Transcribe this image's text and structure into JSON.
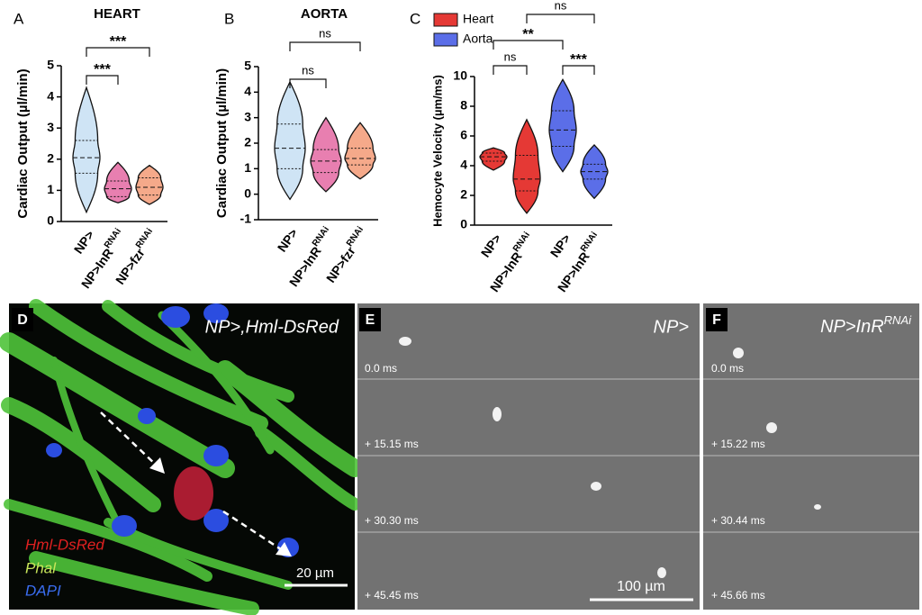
{
  "chart_data": [
    {
      "type": "violin",
      "label": "A",
      "title": "HEART",
      "ylabel": "Cardiac Output (µl/min)",
      "ylim": [
        0,
        5
      ],
      "yticks": [
        0,
        1,
        2,
        3,
        4,
        5
      ],
      "groups": [
        {
          "category": "NP>",
          "sup": null,
          "color": "#cfe4f5",
          "min": 0.3,
          "q1": 1.55,
          "median": 2.05,
          "q3": 2.6,
          "max": 4.3
        },
        {
          "category": "NP>InR",
          "sup": "RNAi",
          "color": "#e87fb0",
          "min": 0.6,
          "q1": 0.8,
          "median": 1.05,
          "q3": 1.3,
          "max": 1.9
        },
        {
          "category": "NP>fzr",
          "sup": "RNAi",
          "color": "#f5a98a",
          "min": 0.55,
          "q1": 0.85,
          "median": 1.1,
          "q3": 1.4,
          "max": 1.8
        }
      ],
      "comparisons": [
        {
          "from": 0,
          "to": 1,
          "label": "***"
        },
        {
          "from": 0,
          "to": 2,
          "label": "***"
        }
      ]
    },
    {
      "type": "violin",
      "label": "B",
      "title": "AORTA",
      "ylabel": "Cardiac Output (µl/min)",
      "ylim": [
        -1,
        5
      ],
      "yticks": [
        -1,
        0,
        1,
        2,
        3,
        4,
        5
      ],
      "groups": [
        {
          "category": "NP>",
          "sup": null,
          "color": "#cfe4f5",
          "min": -0.2,
          "q1": 1.0,
          "median": 1.8,
          "q3": 2.75,
          "max": 4.4
        },
        {
          "category": "NP>InR",
          "sup": "RNAi",
          "color": "#e87fb0",
          "min": 0.1,
          "q1": 0.85,
          "median": 1.3,
          "q3": 1.75,
          "max": 3.0
        },
        {
          "category": "NP>fzr",
          "sup": "RNAi",
          "color": "#f5a98a",
          "min": 0.6,
          "q1": 1.15,
          "median": 1.4,
          "q3": 1.8,
          "max": 2.8
        }
      ],
      "comparisons": [
        {
          "from": 0,
          "to": 1,
          "label": "ns"
        },
        {
          "from": 0,
          "to": 2,
          "label": "ns"
        }
      ]
    },
    {
      "type": "violin",
      "label": "C",
      "ylabel": "Hemocyte Velocity (µm/ms)",
      "ylim": [
        0,
        10
      ],
      "yticks": [
        0,
        2,
        4,
        6,
        8,
        10
      ],
      "legend": [
        {
          "name": "Heart",
          "color": "#e53935"
        },
        {
          "name": "Aorta",
          "color": "#5b6ee8"
        }
      ],
      "groups": [
        {
          "category": "NP>",
          "sup": null,
          "color": "#e53935",
          "min": 3.7,
          "q1": 4.3,
          "median": 4.6,
          "q3": 4.85,
          "max": 5.2
        },
        {
          "category": "NP>InR",
          "sup": "RNAi",
          "color": "#e53935",
          "min": 0.8,
          "q1": 2.3,
          "median": 3.1,
          "q3": 4.7,
          "max": 7.1
        },
        {
          "category": "NP>",
          "sup": null,
          "color": "#5b6ee8",
          "min": 3.6,
          "q1": 5.3,
          "median": 6.4,
          "q3": 7.7,
          "max": 9.8
        },
        {
          "category": "NP>InR",
          "sup": "RNAi",
          "color": "#5b6ee8",
          "min": 1.8,
          "q1": 3.1,
          "median": 3.6,
          "q3": 4.1,
          "max": 5.4
        }
      ],
      "comparisons": [
        {
          "from": 0,
          "to": 1,
          "label": "ns"
        },
        {
          "from": 2,
          "to": 3,
          "label": "***"
        },
        {
          "from": 0,
          "to": 2,
          "label": "**"
        },
        {
          "from": 1,
          "to": 3,
          "label": "ns"
        }
      ]
    }
  ],
  "panels": [
    {
      "label": "D",
      "title": "NP>,Hml-DsRed",
      "stains": [
        "Hml-DsRed",
        "Phal",
        "DAPI"
      ],
      "scale_bar": "20 µm"
    },
    {
      "label": "E",
      "title": "NP>",
      "times": [
        "0.0 ms",
        "+ 15.15 ms",
        "+ 30.30 ms",
        "+ 45.45 ms"
      ],
      "scale_bar": "100 µm"
    },
    {
      "label": "F",
      "title": "NP>InR",
      "title_sup": "RNAi",
      "times": [
        "0.0 ms",
        "+ 15.22 ms",
        "+ 30.44 ms",
        "+ 45.66 ms"
      ]
    }
  ]
}
